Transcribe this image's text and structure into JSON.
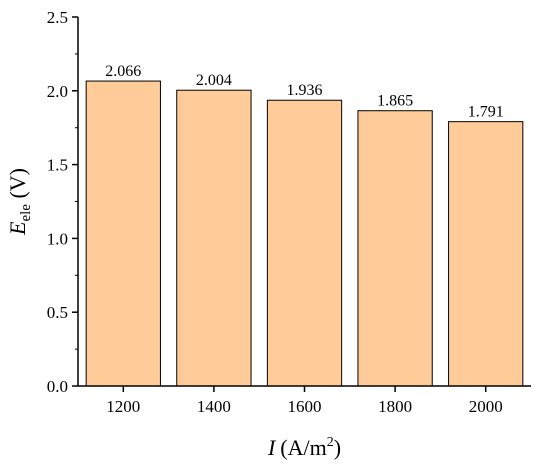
{
  "chart_data": {
    "type": "bar",
    "categories": [
      "1200",
      "1400",
      "1600",
      "1800",
      "2000"
    ],
    "values": [
      2.066,
      2.004,
      1.936,
      1.865,
      1.791
    ],
    "data_labels": [
      "2.066",
      "2.004",
      "1.936",
      "1.865",
      "1.791"
    ],
    "yticks": [
      "0.0",
      "0.5",
      "1.0",
      "1.5",
      "2.0",
      "2.5"
    ],
    "ylim": [
      0,
      2.5
    ],
    "xlabel": {
      "symbol": "I",
      "unit": "(A/m",
      "sup": "2",
      "close": ")"
    },
    "ylabel": {
      "symbol": "E",
      "sub": "ele",
      "unit": " (V)"
    },
    "title": "",
    "grid": false,
    "bar_color": "#FFCC99",
    "bar_stroke": "#000000"
  }
}
